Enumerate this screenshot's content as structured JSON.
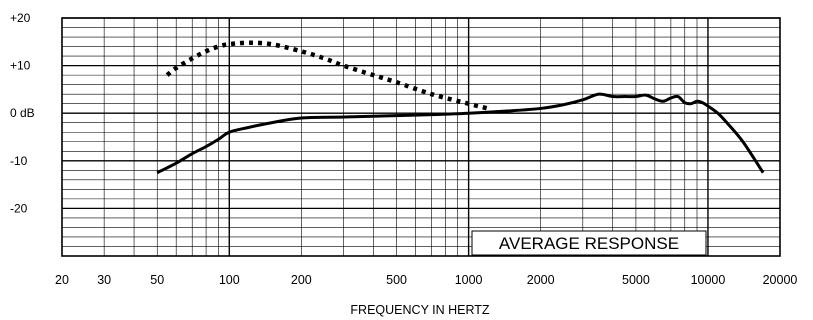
{
  "chart_data": {
    "type": "line",
    "title": "",
    "xlabel": "FREQUENCY IN HERTZ",
    "ylabel": "",
    "x_scale": "log",
    "xlim": [
      20,
      20000
    ],
    "ylim": [
      -30,
      20
    ],
    "x_ticks": [
      20,
      30,
      50,
      100,
      200,
      500,
      1000,
      2000,
      5000,
      10000,
      20000
    ],
    "x_tick_labels": [
      "20",
      "30",
      "50",
      "100",
      "200",
      "500",
      "1000",
      "2000",
      "5000",
      "10000",
      "20000"
    ],
    "y_ticks": [
      20,
      10,
      0,
      -10,
      -20
    ],
    "y_tick_labels": [
      "+20",
      "+10",
      "0 dB",
      "-10",
      "-20"
    ],
    "grid": true,
    "legend_box_text": "AVERAGE RESPONSE",
    "legend_placement": "bottom-right",
    "series": [
      {
        "style": "solid",
        "color": "#000000",
        "x": [
          50,
          60,
          70,
          80,
          90,
          100,
          120,
          150,
          200,
          300,
          500,
          700,
          1000,
          1500,
          2000,
          2500,
          3000,
          3500,
          4000,
          4500,
          5000,
          5500,
          6000,
          6500,
          7000,
          7500,
          8000,
          8500,
          9000,
          9500,
          10000,
          11000,
          12000,
          14000,
          17000
        ],
        "y": [
          -12.5,
          -10.5,
          -8.5,
          -7,
          -5.5,
          -4,
          -3,
          -2,
          -1,
          -0.8,
          -0.5,
          -0.3,
          0,
          0.5,
          1,
          1.8,
          2.8,
          4,
          3.5,
          3.5,
          3.5,
          3.8,
          3,
          2.5,
          3.2,
          3.5,
          2.2,
          2,
          2.5,
          2.2,
          1.5,
          0,
          -2,
          -6,
          -12.5
        ]
      },
      {
        "style": "dotted",
        "color": "#000000",
        "x": [
          55,
          60,
          70,
          80,
          90,
          100,
          120,
          150,
          200,
          250,
          300,
          400,
          500,
          700,
          1000,
          1200
        ],
        "y": [
          8,
          9.5,
          11.5,
          13,
          14,
          14.5,
          14.8,
          14.5,
          13,
          11.5,
          10,
          8,
          6.5,
          4,
          2,
          1
        ]
      }
    ]
  }
}
